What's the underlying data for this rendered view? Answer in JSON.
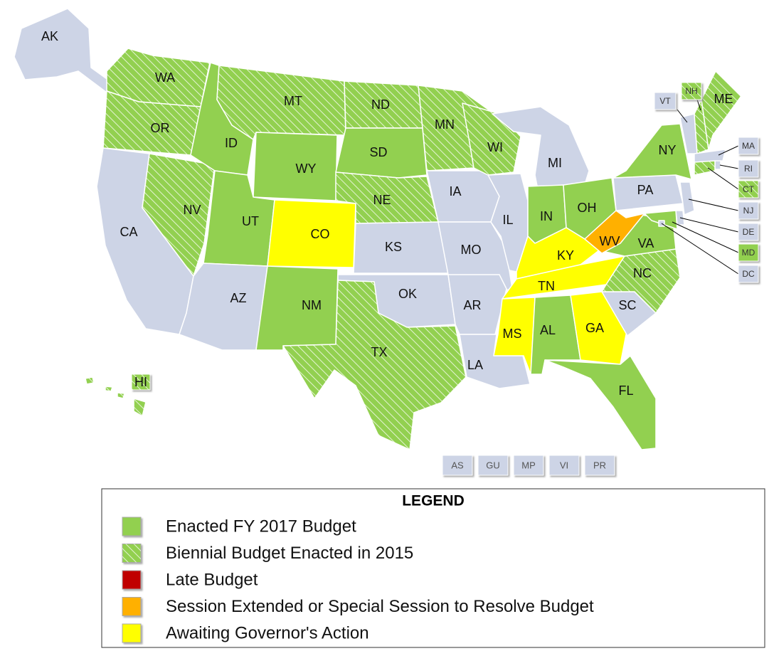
{
  "map": {
    "states": [
      {
        "label": "AK",
        "color": "#cdd4e6",
        "hatched": false
      },
      {
        "label": "HI",
        "color": "#92d050",
        "hatched": true
      },
      {
        "label": "WA",
        "color": "#92d050",
        "hatched": true
      },
      {
        "label": "OR",
        "color": "#92d050",
        "hatched": true
      },
      {
        "label": "CA",
        "color": "#cdd4e6",
        "hatched": false
      },
      {
        "label": "NV",
        "color": "#92d050",
        "hatched": true
      },
      {
        "label": "ID",
        "color": "#92d050",
        "hatched": false
      },
      {
        "label": "MT",
        "color": "#92d050",
        "hatched": true
      },
      {
        "label": "WY",
        "color": "#92d050",
        "hatched": false
      },
      {
        "label": "UT",
        "color": "#92d050",
        "hatched": false
      },
      {
        "label": "AZ",
        "color": "#cdd4e6",
        "hatched": false
      },
      {
        "label": "CO",
        "color": "#ffff00",
        "hatched": false
      },
      {
        "label": "NM",
        "color": "#92d050",
        "hatched": false
      },
      {
        "label": "ND",
        "color": "#92d050",
        "hatched": true
      },
      {
        "label": "SD",
        "color": "#92d050",
        "hatched": false
      },
      {
        "label": "NE",
        "color": "#92d050",
        "hatched": true
      },
      {
        "label": "KS",
        "color": "#cdd4e6",
        "hatched": false
      },
      {
        "label": "OK",
        "color": "#cdd4e6",
        "hatched": false
      },
      {
        "label": "TX",
        "color": "#92d050",
        "hatched": true
      },
      {
        "label": "MN",
        "color": "#92d050",
        "hatched": true
      },
      {
        "label": "IA",
        "color": "#cdd4e6",
        "hatched": false
      },
      {
        "label": "MO",
        "color": "#cdd4e6",
        "hatched": false
      },
      {
        "label": "AR",
        "color": "#cdd4e6",
        "hatched": false
      },
      {
        "label": "LA",
        "color": "#cdd4e6",
        "hatched": false
      },
      {
        "label": "WI",
        "color": "#92d050",
        "hatched": true
      },
      {
        "label": "IL",
        "color": "#cdd4e6",
        "hatched": false
      },
      {
        "label": "MI",
        "color": "#cdd4e6",
        "hatched": false
      },
      {
        "label": "IN",
        "color": "#92d050",
        "hatched": false
      },
      {
        "label": "OH",
        "color": "#92d050",
        "hatched": false
      },
      {
        "label": "KY",
        "color": "#ffff00",
        "hatched": false
      },
      {
        "label": "TN",
        "color": "#ffff00",
        "hatched": false
      },
      {
        "label": "MS",
        "color": "#ffff00",
        "hatched": false
      },
      {
        "label": "AL",
        "color": "#92d050",
        "hatched": false
      },
      {
        "label": "GA",
        "color": "#ffff00",
        "hatched": false
      },
      {
        "label": "FL",
        "color": "#92d050",
        "hatched": false
      },
      {
        "label": "SC",
        "color": "#cdd4e6",
        "hatched": false
      },
      {
        "label": "NC",
        "color": "#92d050",
        "hatched": true
      },
      {
        "label": "VA",
        "color": "#92d050",
        "hatched": false
      },
      {
        "label": "WV",
        "color": "#ffb000",
        "hatched": false
      },
      {
        "label": "PA",
        "color": "#cdd4e6",
        "hatched": false
      },
      {
        "label": "NY",
        "color": "#92d050",
        "hatched": false
      },
      {
        "label": "VT",
        "color": "#cdd4e6",
        "hatched": false
      },
      {
        "label": "NH",
        "color": "#92d050",
        "hatched": true
      },
      {
        "label": "ME",
        "color": "#92d050",
        "hatched": true
      },
      {
        "label": "MA",
        "color": "#cdd4e6",
        "hatched": false
      },
      {
        "label": "RI",
        "color": "#cdd4e6",
        "hatched": false
      },
      {
        "label": "CT",
        "color": "#92d050",
        "hatched": true
      },
      {
        "label": "NJ",
        "color": "#cdd4e6",
        "hatched": false
      },
      {
        "label": "DE",
        "color": "#cdd4e6",
        "hatched": false
      },
      {
        "label": "MD",
        "color": "#92d050",
        "hatched": false
      },
      {
        "label": "DC",
        "color": "#cdd4e6",
        "hatched": false
      }
    ],
    "territories": [
      {
        "label": "AS",
        "color": "#cdd4e6"
      },
      {
        "label": "GU",
        "color": "#cdd4e6"
      },
      {
        "label": "MP",
        "color": "#cdd4e6"
      },
      {
        "label": "VI",
        "color": "#cdd4e6"
      },
      {
        "label": "PR",
        "color": "#cdd4e6"
      }
    ],
    "legend": {
      "title": "LEGEND",
      "items": [
        {
          "label": "Enacted FY 2017 Budget",
          "color": "#92d050",
          "hatched": false
        },
        {
          "label": "Biennial Budget Enacted in 2015",
          "color": "#92d050",
          "hatched": true
        },
        {
          "label": "Late Budget",
          "color": "#c00000",
          "hatched": false
        },
        {
          "label": "Session Extended or Special Session to Resolve Budget",
          "color": "#ffb000",
          "hatched": false
        },
        {
          "label": "Awaiting Governor's Action",
          "color": "#ffff00",
          "hatched": false
        }
      ]
    }
  }
}
